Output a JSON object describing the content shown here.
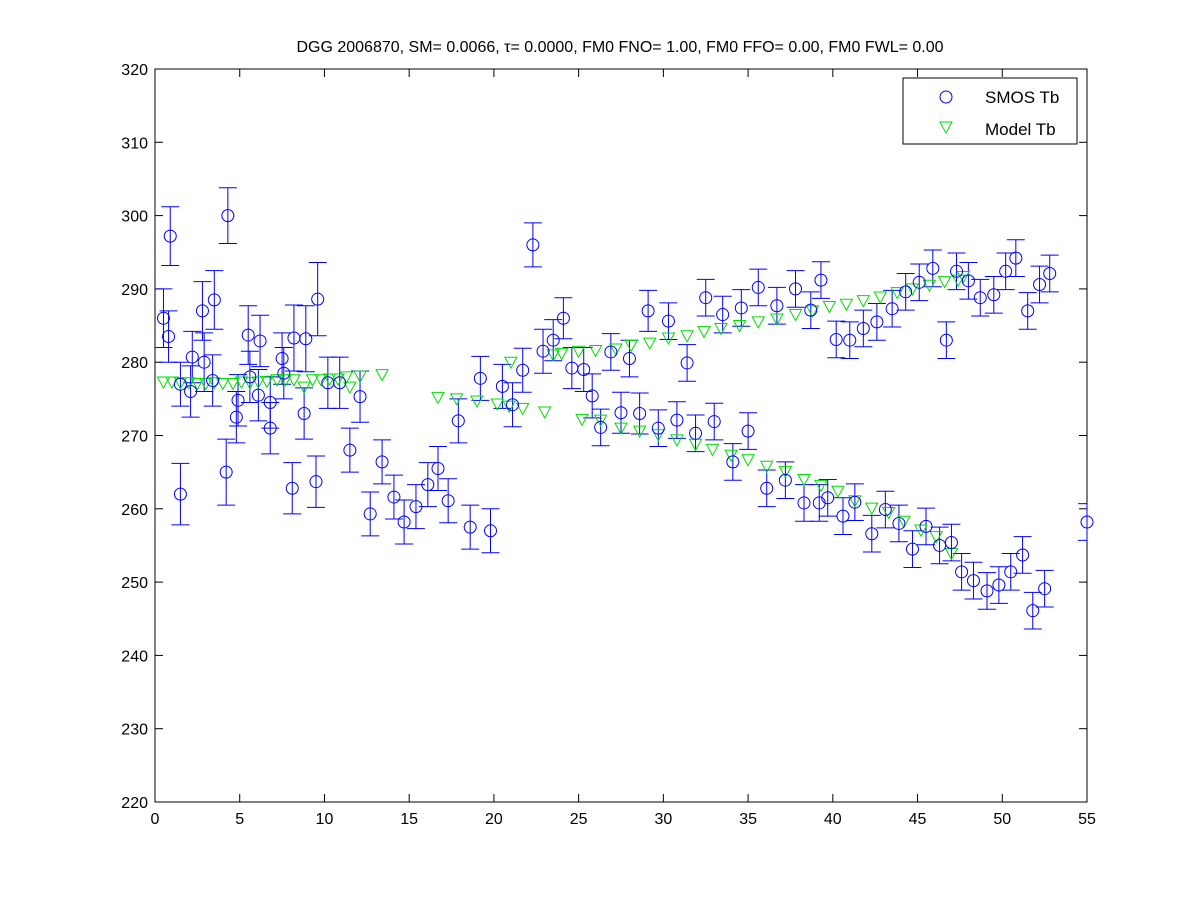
{
  "chart_data": {
    "type": "scatter",
    "title": "DGG 2006870, SM= 0.0066, τ= 0.0000, FM0 FNO= 1.00, FM0 FFO= 0.00, FM0 FWL= 0.00",
    "xlabel": "",
    "ylabel": "",
    "xlim": [
      0,
      55
    ],
    "ylim": [
      220,
      320
    ],
    "xticks": [
      0,
      5,
      10,
      15,
      20,
      25,
      30,
      35,
      40,
      45,
      50,
      55
    ],
    "yticks": [
      220,
      230,
      240,
      250,
      260,
      270,
      280,
      290,
      300,
      310,
      320
    ],
    "grid": false,
    "legend_position": "top-right",
    "series": [
      {
        "name": "SMOS Tb",
        "marker": "circle",
        "color": "#0000ff",
        "error_bars": true,
        "points": [
          [
            0.5,
            286,
            4
          ],
          [
            0.8,
            283.5,
            3.5
          ],
          [
            0.9,
            297.2,
            4
          ],
          [
            1.5,
            277,
            3
          ],
          [
            1.5,
            262,
            4.2
          ],
          [
            2.1,
            276,
            3.5
          ],
          [
            2.2,
            280.7,
            3.5
          ],
          [
            2.8,
            287,
            4
          ],
          [
            2.9,
            280,
            4
          ],
          [
            3.4,
            277.5,
            3.5
          ],
          [
            3.5,
            288.5,
            4
          ],
          [
            4.2,
            265,
            4.5
          ],
          [
            4.3,
            300,
            3.8
          ],
          [
            4.8,
            272.5,
            3.5
          ],
          [
            4.9,
            274.8,
            3.5
          ],
          [
            5.5,
            283.7,
            4
          ],
          [
            5.6,
            278,
            3.5
          ],
          [
            6.1,
            275.5,
            3.5
          ],
          [
            6.2,
            282.9,
            3.5
          ],
          [
            6.8,
            274.5,
            3.5
          ],
          [
            6.8,
            271,
            3.5
          ],
          [
            7.5,
            280.5,
            3.5
          ],
          [
            7.6,
            278.5,
            3.5
          ],
          [
            8.1,
            262.8,
            3.5
          ],
          [
            8.2,
            283.3,
            4.5
          ],
          [
            8.8,
            273,
            3.5
          ],
          [
            8.9,
            283.2,
            4.5
          ],
          [
            9.5,
            263.7,
            3.5
          ],
          [
            9.6,
            288.6,
            5
          ],
          [
            10.2,
            277.2,
            3.5
          ],
          [
            10.9,
            277.2,
            3.5
          ],
          [
            12.1,
            275.3,
            3.5
          ],
          [
            12.7,
            259.3,
            3
          ],
          [
            11.5,
            268,
            3
          ],
          [
            13.4,
            266.4,
            3
          ],
          [
            14.1,
            261.6,
            3
          ],
          [
            14.7,
            258.2,
            3
          ],
          [
            15.4,
            260.3,
            3
          ],
          [
            16.1,
            263.3,
            3
          ],
          [
            16.7,
            265.5,
            3
          ],
          [
            17.3,
            261.1,
            3
          ],
          [
            17.9,
            272,
            3
          ],
          [
            18.6,
            257.5,
            3
          ],
          [
            19.2,
            277.8,
            3
          ],
          [
            19.8,
            257,
            3
          ],
          [
            20.5,
            276.7,
            3
          ],
          [
            21.1,
            274.2,
            3
          ],
          [
            21.7,
            278.9,
            3
          ],
          [
            22.3,
            296,
            3
          ],
          [
            22.9,
            281.5,
            3
          ],
          [
            23.5,
            283,
            2.8
          ],
          [
            24.1,
            286,
            2.8
          ],
          [
            24.6,
            279.2,
            2.8
          ],
          [
            25.3,
            279,
            3
          ],
          [
            25.8,
            275.4,
            3
          ],
          [
            26.3,
            271.1,
            2.5
          ],
          [
            26.9,
            281.4,
            2.5
          ],
          [
            27.5,
            273.1,
            2.8
          ],
          [
            28,
            280.5,
            2.5
          ],
          [
            28.6,
            273,
            2.8
          ],
          [
            29.1,
            287,
            2.8
          ],
          [
            29.7,
            271,
            2.5
          ],
          [
            30.3,
            285.6,
            2.5
          ],
          [
            30.8,
            272.1,
            2.5
          ],
          [
            31.4,
            279.9,
            2.5
          ],
          [
            31.9,
            270.3,
            2.5
          ],
          [
            32.5,
            288.8,
            2.5
          ],
          [
            33,
            271.9,
            2.5
          ],
          [
            33.5,
            286.5,
            2.5
          ],
          [
            34.1,
            266.4,
            2.5
          ],
          [
            34.6,
            287.4,
            2.5
          ],
          [
            35,
            270.6,
            2.5
          ],
          [
            35.6,
            290.2,
            2.5
          ],
          [
            36.1,
            262.8,
            2.5
          ],
          [
            36.7,
            287.7,
            2.5
          ],
          [
            37.2,
            263.9,
            2.5
          ],
          [
            37.8,
            290,
            2.5
          ],
          [
            38.3,
            260.8,
            2.5
          ],
          [
            38.7,
            287.1,
            2.5
          ],
          [
            39.2,
            260.8,
            2.5
          ],
          [
            39.3,
            291.2,
            2.5
          ],
          [
            39.7,
            261.5,
            2.5
          ],
          [
            40.2,
            283.1,
            2.5
          ],
          [
            40.6,
            259,
            2.5
          ],
          [
            41,
            283,
            2.5
          ],
          [
            41.3,
            260.9,
            2.5
          ],
          [
            41.8,
            284.6,
            2.5
          ],
          [
            42.3,
            256.6,
            2.5
          ],
          [
            42.6,
            285.5,
            2.5
          ],
          [
            43.1,
            259.9,
            2.5
          ],
          [
            43.5,
            287.3,
            2.5
          ],
          [
            43.9,
            258,
            2.5
          ],
          [
            44.3,
            289.6,
            2.5
          ],
          [
            44.7,
            254.5,
            2.5
          ],
          [
            45.1,
            290.9,
            2.5
          ],
          [
            45.5,
            257.6,
            2.5
          ],
          [
            45.9,
            292.8,
            2.5
          ],
          [
            46.3,
            255,
            2.5
          ],
          [
            46.7,
            283,
            2.5
          ],
          [
            47,
            255.4,
            2.5
          ],
          [
            47.3,
            292.4,
            2.5
          ],
          [
            47.6,
            251.4,
            2.5
          ],
          [
            48,
            291.1,
            2.5
          ],
          [
            48.3,
            250.2,
            2.5
          ],
          [
            48.7,
            288.8,
            2.5
          ],
          [
            49.1,
            248.8,
            2.5
          ],
          [
            49.5,
            289.2,
            2.5
          ],
          [
            49.8,
            249.6,
            2.5
          ],
          [
            50.2,
            292.4,
            2.5
          ],
          [
            50.5,
            251.4,
            2.5
          ],
          [
            50.8,
            294.2,
            2.5
          ],
          [
            51.2,
            253.7,
            2.5
          ],
          [
            51.5,
            287,
            2.5
          ],
          [
            51.8,
            246.1,
            2.5
          ],
          [
            52.2,
            290.6,
            2.5
          ],
          [
            52.5,
            249.1,
            2.5
          ],
          [
            52.8,
            292.1,
            2.5
          ],
          [
            55,
            258.2,
            2.5
          ]
        ]
      },
      {
        "name": "Model Tb",
        "marker": "triangle-down",
        "color": "#00dd00",
        "error_bars": false,
        "points": [
          [
            0.5,
            277.3
          ],
          [
            1,
            277.3
          ],
          [
            1.5,
            277.2
          ],
          [
            2,
            277.2
          ],
          [
            2.5,
            277.1
          ],
          [
            3,
            277.1
          ],
          [
            3.5,
            277.2
          ],
          [
            4,
            277.1
          ],
          [
            4.6,
            277.1
          ],
          [
            5.1,
            277.3
          ],
          [
            5.6,
            277.2
          ],
          [
            6.1,
            277.3
          ],
          [
            6.6,
            277.4
          ],
          [
            7.2,
            277.6
          ],
          [
            7.7,
            277.6
          ],
          [
            8.2,
            277.6
          ],
          [
            8.8,
            276.6
          ],
          [
            9.3,
            277.6
          ],
          [
            9.8,
            277.6
          ],
          [
            10.3,
            277.7
          ],
          [
            10.8,
            277.7
          ],
          [
            11.3,
            278
          ],
          [
            11.5,
            276.6
          ],
          [
            12.1,
            278.1
          ],
          [
            13.4,
            278.3
          ],
          [
            16.7,
            275.2
          ],
          [
            17.8,
            275
          ],
          [
            19,
            274.7
          ],
          [
            20.2,
            274.3
          ],
          [
            21,
            280
          ],
          [
            20.9,
            274
          ],
          [
            21.7,
            273.7
          ],
          [
            23,
            273.2
          ],
          [
            23.5,
            281
          ],
          [
            24,
            281.2
          ],
          [
            25,
            281.5
          ],
          [
            25.2,
            272.2
          ],
          [
            26,
            281.6
          ],
          [
            26.3,
            272.1
          ],
          [
            27.2,
            281.8
          ],
          [
            27.5,
            271
          ],
          [
            28.1,
            282.3
          ],
          [
            28.6,
            270.6
          ],
          [
            29.2,
            282.6
          ],
          [
            29.7,
            270.1
          ],
          [
            30.3,
            283.3
          ],
          [
            30.8,
            269.4
          ],
          [
            31.4,
            283.6
          ],
          [
            31.9,
            268.8
          ],
          [
            32.4,
            284.2
          ],
          [
            32.9,
            268.1
          ],
          [
            33.4,
            284.6
          ],
          [
            34,
            267.3
          ],
          [
            34.5,
            285
          ],
          [
            35,
            266.7
          ],
          [
            35.6,
            285.5
          ],
          [
            36.1,
            265.8
          ],
          [
            36.7,
            285.9
          ],
          [
            37.2,
            265.1
          ],
          [
            37.8,
            286.5
          ],
          [
            38.3,
            264
          ],
          [
            38.8,
            287
          ],
          [
            39.3,
            263.2
          ],
          [
            39.8,
            287.6
          ],
          [
            40.3,
            262.4
          ],
          [
            40.8,
            287.9
          ],
          [
            41.3,
            261.1
          ],
          [
            41.8,
            288.4
          ],
          [
            42.3,
            260.1
          ],
          [
            42.8,
            288.9
          ],
          [
            43.3,
            259.5
          ],
          [
            43.8,
            289.5
          ],
          [
            44.2,
            258.3
          ],
          [
            44.7,
            290
          ],
          [
            45.2,
            257.1
          ],
          [
            45.7,
            290.5
          ],
          [
            46.1,
            256.2
          ],
          [
            46.6,
            291
          ],
          [
            47,
            253.9
          ],
          [
            47.4,
            291.2
          ],
          [
            47.7,
            291.7
          ]
        ]
      }
    ]
  }
}
